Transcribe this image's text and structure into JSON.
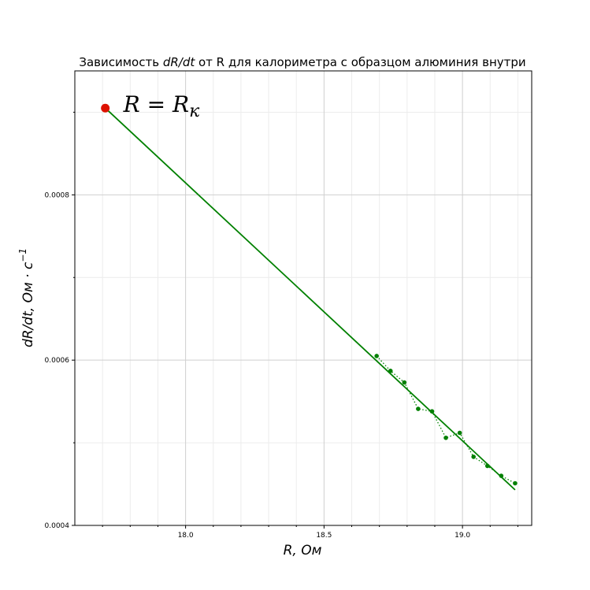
{
  "chart_data": {
    "type": "scatter",
    "title": "Зависимость dR/dt от R для калориметра с образцом алюминия внутри",
    "title_parts": [
      "Зависимость ",
      "dR/dt",
      " от R для калориметра с образцом алюминия внутри"
    ],
    "xlabel": "R, Ом",
    "ylabel": "dR/dt, Ом · с",
    "ylabel_exponent": "−1",
    "xlim": [
      17.6,
      19.25
    ],
    "ylim": [
      0.0004,
      0.00095
    ],
    "x_major_ticks": [
      18.0,
      18.5,
      19.0
    ],
    "x_major_tick_labels": [
      "18.0",
      "18.5",
      "19.0"
    ],
    "x_minor_ticks": [
      17.7,
      17.8,
      17.9,
      18.1,
      18.2,
      18.3,
      18.4,
      18.6,
      18.7,
      18.8,
      18.9,
      19.1,
      19.2
    ],
    "y_major_ticks": [
      0.0004,
      0.0006,
      0.0008
    ],
    "y_major_tick_labels": [
      "0.0004",
      "0.0006",
      "0.0008"
    ],
    "y_minor_ticks": [
      0.0005,
      0.0007,
      0.0009
    ],
    "grid": true,
    "series": [
      {
        "style": "dotted-line-with-markers",
        "color": "#008000",
        "x": [
          18.69,
          18.74,
          18.79,
          18.84,
          18.89,
          18.94,
          18.99,
          19.04,
          19.09,
          19.14,
          19.19
        ],
        "y": [
          0.000605,
          0.000587,
          0.000573,
          0.000541,
          0.000538,
          0.000506,
          0.000512,
          0.000483,
          0.000472,
          0.00046,
          0.000451
        ]
      },
      {
        "style": "solid-line",
        "color": "#008000",
        "x": [
          17.71,
          19.19
        ],
        "y": [
          0.000905,
          0.000443
        ]
      },
      {
        "style": "point",
        "color": "#dd1100",
        "x": [
          17.71
        ],
        "y": [
          0.000905
        ]
      }
    ],
    "annotation": {
      "text": "R = R",
      "subscript": "к",
      "x": 17.71,
      "y": 0.000905
    }
  }
}
